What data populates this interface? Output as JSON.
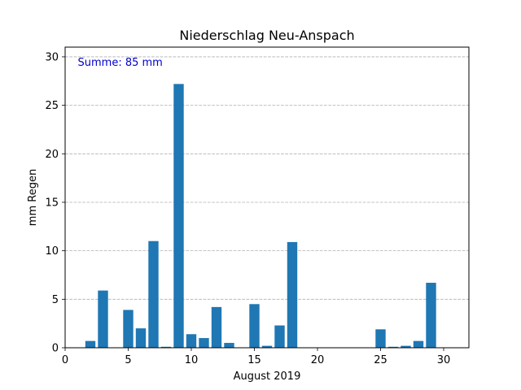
{
  "chart_data": {
    "type": "bar",
    "title": "Niederschlag Neu-Anspach",
    "xlabel": "August 2019",
    "ylabel": "mm Regen",
    "xlim": [
      0,
      32
    ],
    "ylim": [
      0,
      31
    ],
    "xticks": [
      0,
      5,
      10,
      15,
      20,
      25,
      30
    ],
    "yticks": [
      0,
      5,
      10,
      15,
      20,
      25,
      30
    ],
    "grid": "y-dashed",
    "bar_color": "#1f77b4",
    "annotation": {
      "text": "Summe: 85 mm",
      "color": "#0000cc",
      "x": 1,
      "y": 29.5
    },
    "x": [
      1,
      2,
      3,
      4,
      5,
      6,
      7,
      8,
      9,
      10,
      11,
      12,
      13,
      14,
      15,
      16,
      17,
      18,
      19,
      20,
      21,
      22,
      23,
      24,
      25,
      26,
      27,
      28,
      29,
      30,
      31
    ],
    "values": [
      0,
      0.7,
      5.9,
      0,
      3.9,
      2.0,
      11.0,
      0.1,
      27.2,
      1.4,
      1.0,
      4.2,
      0.5,
      0,
      4.5,
      0.2,
      2.3,
      10.9,
      0,
      0,
      0,
      0,
      0,
      0,
      1.9,
      0.1,
      0.2,
      0.7,
      6.7,
      0,
      0
    ]
  }
}
